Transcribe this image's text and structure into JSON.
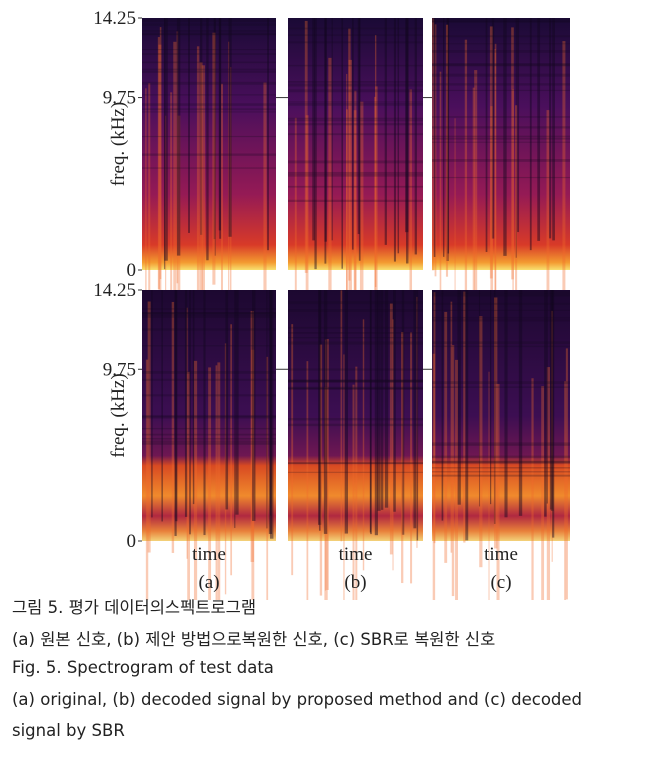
{
  "figure": {
    "rows": [
      {
        "yticks": [
          0,
          9.75,
          14.25
        ],
        "ylabel": "freq. (kHz)"
      },
      {
        "yticks": [
          0,
          9.75,
          14.25
        ],
        "ylabel": "freq. (kHz)"
      }
    ],
    "panels": [
      {
        "xlabel": "time",
        "label": "(a)"
      },
      {
        "xlabel": "time",
        "label": "(b)"
      },
      {
        "xlabel": "time",
        "label": "(c)"
      }
    ],
    "caption": {
      "korean_title": "그림 5. 평가 데이터의스펙트로그램",
      "korean_subtitle": "(a) 원본 신호, (b) 제안 방법으로복원한 신호, (c) SBR로 복원한 신호",
      "english_title": "Fig. 5. Spectrogram of test data",
      "english_lines": [
        "(a) original, (b) decoded signal by proposed method and (c) decoded",
        "signal by SBR"
      ]
    }
  }
}
